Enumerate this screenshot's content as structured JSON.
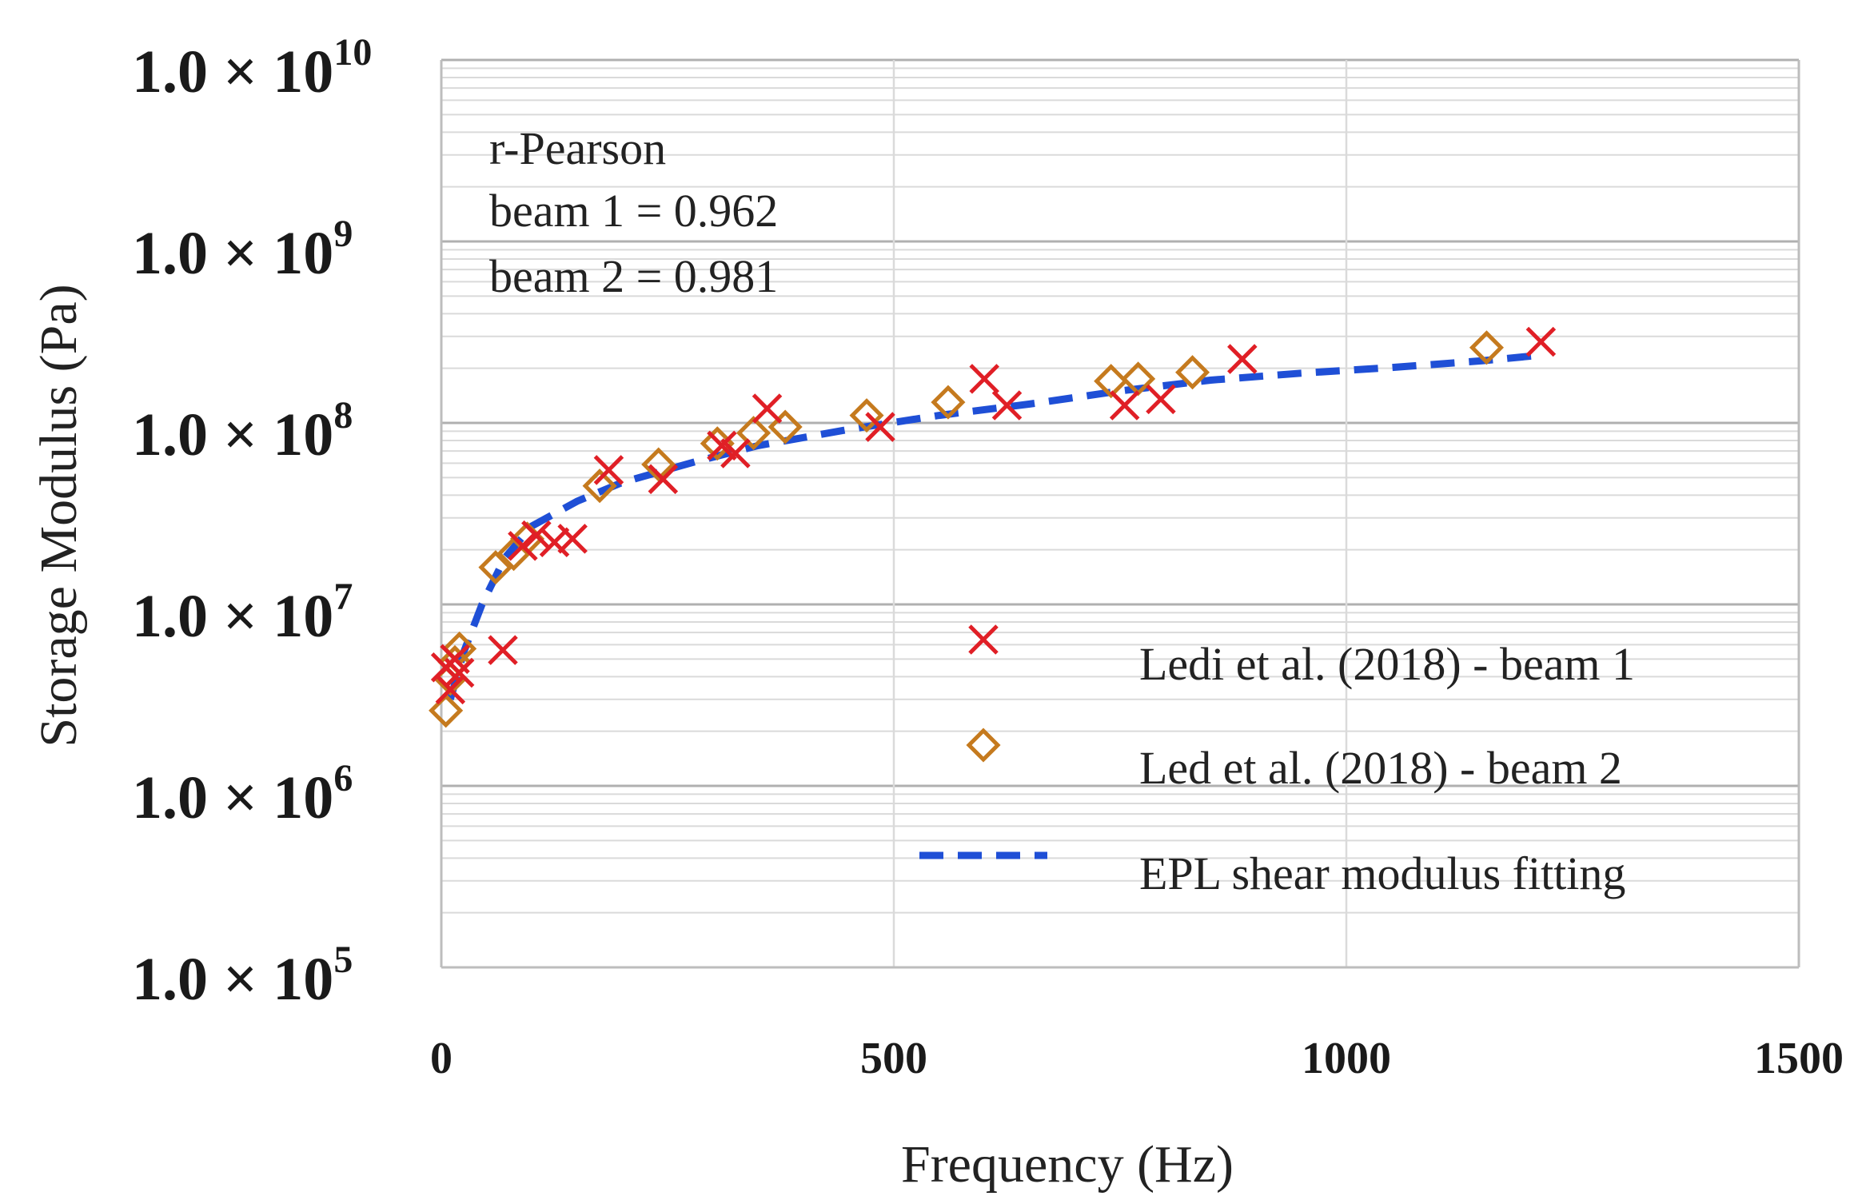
{
  "chart_data": {
    "type": "scatter",
    "title": "",
    "xlabel": "Frequency (Hz)",
    "ylabel": "Storage Modulus (Pa)",
    "xlim": [
      0,
      1500
    ],
    "ylim": [
      100000,
      10000000000
    ],
    "yscale": "log",
    "x_ticks": [
      "0",
      "500",
      "1000",
      "1500"
    ],
    "y_ticks": [
      {
        "mantissa": "1.0 × 10",
        "exp": "10"
      },
      {
        "mantissa": "1.0 × 10",
        "exp": "9"
      },
      {
        "mantissa": "1.0 × 10",
        "exp": "8"
      },
      {
        "mantissa": "1.0 × 10",
        "exp": "7"
      },
      {
        "mantissa": "1.0 × 10",
        "exp": "6"
      },
      {
        "mantissa": "1.0 × 10",
        "exp": "5"
      }
    ],
    "grid": true,
    "legend_position": "bottom-right",
    "annotation": [
      "r-Pearson",
      "beam 1 = 0.962",
      "beam 2 = 0.981"
    ],
    "colors": {
      "beam1": "#e01f26",
      "beam2": "#c57a1e",
      "fit": "#1f4fd6",
      "grid_major": "#b0b0b0",
      "grid_minor": "#dadada",
      "axis": "#bdbdbd"
    },
    "series": [
      {
        "name": "Ledi et al. (2018) - beam 1",
        "marker": "x",
        "points": [
          [
            5,
            4500000
          ],
          [
            10,
            3400000
          ],
          [
            15,
            5000000
          ],
          [
            20,
            4200000
          ],
          [
            68,
            5600000
          ],
          [
            90,
            21000000
          ],
          [
            105,
            24000000
          ],
          [
            125,
            22000000
          ],
          [
            145,
            23000000
          ],
          [
            185,
            55000000
          ],
          [
            245,
            49000000
          ],
          [
            310,
            75000000
          ],
          [
            325,
            68000000
          ],
          [
            360,
            120000000
          ],
          [
            485,
            95000000
          ],
          [
            600,
            175000000
          ],
          [
            625,
            125000000
          ],
          [
            755,
            125000000
          ],
          [
            795,
            135000000
          ],
          [
            885,
            225000000
          ],
          [
            1215,
            280000000
          ]
        ]
      },
      {
        "name": "Led et al. (2018) - beam 2",
        "marker": "diamond",
        "points": [
          [
            5,
            2600000
          ],
          [
            10,
            3900000
          ],
          [
            15,
            4800000
          ],
          [
            20,
            5700000
          ],
          [
            60,
            16000000
          ],
          [
            80,
            19000000
          ],
          [
            95,
            23000000
          ],
          [
            175,
            45000000
          ],
          [
            240,
            59000000
          ],
          [
            305,
            77000000
          ],
          [
            345,
            88000000
          ],
          [
            380,
            95000000
          ],
          [
            470,
            110000000
          ],
          [
            560,
            130000000
          ],
          [
            740,
            170000000
          ],
          [
            770,
            175000000
          ],
          [
            830,
            190000000
          ],
          [
            1155,
            260000000
          ]
        ]
      },
      {
        "name": "EPL shear modulus fitting",
        "marker": "dashed-line",
        "points": [
          [
            10,
            3000000
          ],
          [
            25,
            5500000
          ],
          [
            45,
            10000000
          ],
          [
            70,
            18000000
          ],
          [
            100,
            27000000
          ],
          [
            150,
            37000000
          ],
          [
            200,
            47000000
          ],
          [
            280,
            61000000
          ],
          [
            350,
            75000000
          ],
          [
            450,
            92000000
          ],
          [
            550,
            110000000
          ],
          [
            650,
            127000000
          ],
          [
            750,
            150000000
          ],
          [
            850,
            172000000
          ],
          [
            950,
            188000000
          ],
          [
            1050,
            202000000
          ],
          [
            1150,
            220000000
          ],
          [
            1210,
            235000000
          ]
        ]
      }
    ]
  }
}
